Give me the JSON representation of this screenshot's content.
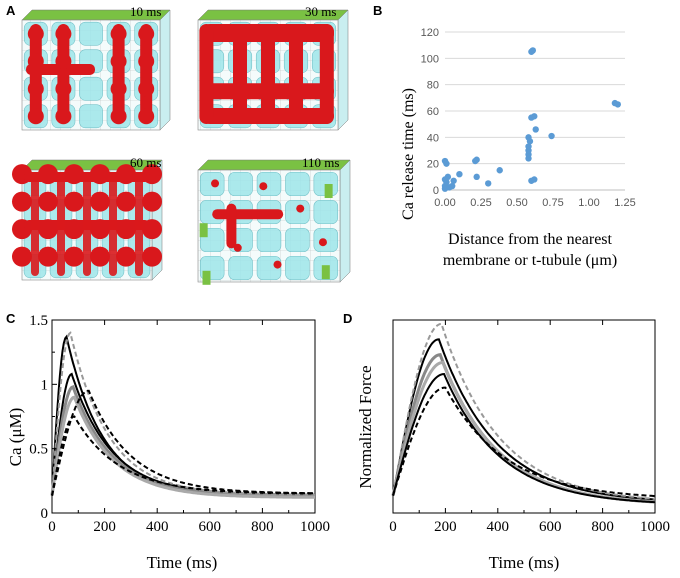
{
  "panels": {
    "a": {
      "label": "A",
      "snapshots": [
        {
          "time": "10 ms"
        },
        {
          "time": "30 ms"
        },
        {
          "time": "60 ms"
        },
        {
          "time": "110 ms"
        }
      ]
    },
    "b": {
      "label": "B"
    },
    "c": {
      "label": "C"
    },
    "d": {
      "label": "D"
    }
  },
  "colors": {
    "grid": "#d9d9d9",
    "point": "#5b9bd5",
    "cyan": "#9fe6ea",
    "red": "#d9181c",
    "green": "#7ac143"
  },
  "chart_data": [
    {
      "id": "B",
      "type": "scatter",
      "xlabel": [
        "Distance from the nearest",
        "membrane or t-tubule (μm)"
      ],
      "ylabel": "Ca release time (ms)",
      "xlim": [
        0,
        1.25
      ],
      "ylim": [
        0,
        120
      ],
      "xticks": [
        "0.00",
        "0.25",
        "0.50",
        "0.75",
        "1.00",
        "1.25"
      ],
      "yticks": [
        "0",
        "20",
        "40",
        "60",
        "80",
        "100",
        "120"
      ],
      "points": [
        [
          0.0,
          1
        ],
        [
          0.0,
          3
        ],
        [
          0.01,
          6
        ],
        [
          0.0,
          8
        ],
        [
          0.02,
          10
        ],
        [
          0.01,
          20
        ],
        [
          0.0,
          22
        ],
        [
          0.03,
          2
        ],
        [
          0.05,
          3
        ],
        [
          0.06,
          7
        ],
        [
          0.1,
          12
        ],
        [
          0.21,
          22
        ],
        [
          0.22,
          23
        ],
        [
          0.22,
          10
        ],
        [
          0.3,
          5
        ],
        [
          0.38,
          15
        ],
        [
          0.58,
          24
        ],
        [
          0.58,
          27
        ],
        [
          0.58,
          30
        ],
        [
          0.58,
          33
        ],
        [
          0.59,
          37
        ],
        [
          0.58,
          40
        ],
        [
          0.6,
          7
        ],
        [
          0.62,
          8
        ],
        [
          0.6,
          55
        ],
        [
          0.62,
          56
        ],
        [
          0.63,
          46
        ],
        [
          0.74,
          41
        ],
        [
          0.6,
          105
        ],
        [
          0.61,
          106
        ],
        [
          1.18,
          66
        ],
        [
          1.2,
          65
        ]
      ]
    },
    {
      "id": "C",
      "type": "line",
      "xlabel": "Time (ms)",
      "ylabel": "Ca (μM)",
      "xlim": [
        0,
        1000
      ],
      "ylim": [
        0,
        1.5
      ],
      "xticks": [
        "0",
        "200",
        "400",
        "600",
        "800",
        "1000"
      ],
      "yticks": [
        "0",
        "0.5",
        "1",
        "1.5"
      ],
      "ytick_values": [
        0,
        0.5,
        1,
        1.5
      ],
      "series": [
        {
          "name": "solid black 1",
          "peak": 1.37,
          "tpeak": 55,
          "end": 0.13,
          "tau": 140,
          "color": "#000",
          "dash": "",
          "width": 2
        },
        {
          "name": "solid black 2",
          "peak": 1.08,
          "tpeak": 75,
          "end": 0.14,
          "tau": 150,
          "color": "#000",
          "dash": "",
          "width": 2
        },
        {
          "name": "solid grey 1",
          "peak": 0.98,
          "tpeak": 80,
          "end": 0.13,
          "tau": 150,
          "color": "#888",
          "dash": "",
          "width": 3
        },
        {
          "name": "solid grey 2",
          "peak": 0.9,
          "tpeak": 85,
          "end": 0.12,
          "tau": 150,
          "color": "#aaa",
          "dash": "",
          "width": 3
        },
        {
          "name": "dashed grey",
          "peak": 1.4,
          "tpeak": 70,
          "end": 0.14,
          "tau": 145,
          "color": "#999",
          "dash": "5,3",
          "width": 2
        },
        {
          "name": "dashed black 1",
          "peak": 0.95,
          "tpeak": 140,
          "end": 0.15,
          "tau": 160,
          "color": "#000",
          "dash": "5,3",
          "width": 2
        },
        {
          "name": "dashed black 2",
          "peak": 0.75,
          "tpeak": 85,
          "end": 0.15,
          "tau": 170,
          "color": "#000",
          "dash": "5,3",
          "width": 2
        }
      ]
    },
    {
      "id": "D",
      "type": "line",
      "xlabel": "Time (ms)",
      "ylabel": "Normalized Force",
      "xlim": [
        0,
        1000
      ],
      "ylim": [
        0,
        1
      ],
      "xticks": [
        "0",
        "200",
        "400",
        "600",
        "800",
        "1000"
      ],
      "series": [
        {
          "name": "solid black",
          "peak": 0.9,
          "tpeak": 175,
          "end": 0.05,
          "tau": 220,
          "color": "#000",
          "dash": "",
          "width": 2
        },
        {
          "name": "dashed grey",
          "peak": 0.98,
          "tpeak": 185,
          "end": 0.05,
          "tau": 220,
          "color": "#999",
          "dash": "5,3",
          "width": 2
        },
        {
          "name": "solid grey 1",
          "peak": 0.82,
          "tpeak": 180,
          "end": 0.04,
          "tau": 215,
          "color": "#888",
          "dash": "",
          "width": 3
        },
        {
          "name": "solid grey 2",
          "peak": 0.78,
          "tpeak": 190,
          "end": 0.04,
          "tau": 215,
          "color": "#aaa",
          "dash": "",
          "width": 3
        },
        {
          "name": "solid black 2",
          "peak": 0.72,
          "tpeak": 195,
          "end": 0.04,
          "tau": 215,
          "color": "#000",
          "dash": "",
          "width": 2
        },
        {
          "name": "dashed black",
          "peak": 0.65,
          "tpeak": 200,
          "end": 0.07,
          "tau": 230,
          "color": "#000",
          "dash": "5,3",
          "width": 2
        }
      ]
    }
  ]
}
